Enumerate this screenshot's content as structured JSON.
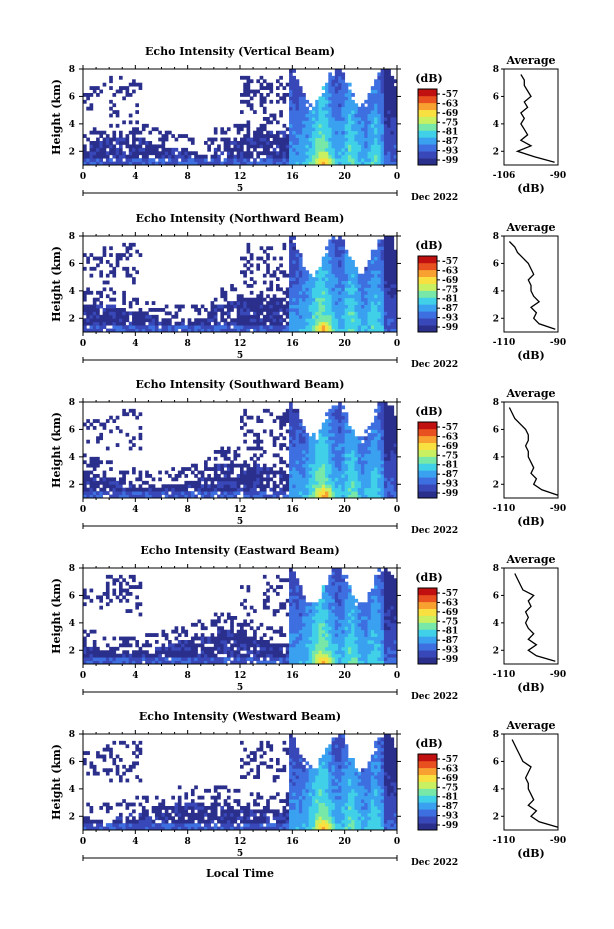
{
  "figure": {
    "xlabel_bottom": "Local Time",
    "colorbar_unit": "(dB)",
    "colorbar_ticks": [
      "-57",
      "-63",
      "-69",
      "-75",
      "-81",
      "-87",
      "-93",
      "-99"
    ],
    "date_label": "Dec 2022",
    "day_label": "5",
    "x_ticks": [
      "0",
      "4",
      "8",
      "12",
      "16",
      "20",
      "0"
    ],
    "y_ticks": [
      "8",
      "6",
      "4",
      "2"
    ],
    "colors": [
      "#2b2f8c",
      "#3848b8",
      "#3e6fe0",
      "#3aa0f0",
      "#40d0e8",
      "#78e8a8",
      "#c8f060",
      "#f8e040",
      "#f8a030",
      "#e85020",
      "#c01010"
    ]
  },
  "chart_data": [
    {
      "type": "heatmap",
      "title": "Echo Intensity (Vertical Beam)",
      "ylabel": "Height (km)",
      "xlabel": "",
      "x_range": [
        0,
        24
      ],
      "y_range": [
        1,
        8
      ],
      "clim": [
        -99,
        -57
      ],
      "colorbar_label": "(dB)",
      "profile": {
        "title": "Average",
        "xlabel": "(dB)",
        "xlim": [
          -106,
          -90
        ],
        "xticks": [
          "-106",
          "-90"
        ],
        "heights": [
          1.2,
          1.6,
          2,
          2.4,
          2.8,
          3.2,
          3.6,
          4,
          4.4,
          4.8,
          5.2,
          5.6,
          6,
          6.4,
          6.8,
          7.2,
          7.6
        ],
        "values": [
          -91,
          -97,
          -102,
          -98,
          -101,
          -99,
          -100,
          -101,
          -100,
          -101,
          -99,
          -100,
          -98,
          -99,
          -100,
          -100,
          -101
        ]
      }
    },
    {
      "type": "heatmap",
      "title": "Echo Intensity (Northward Beam)",
      "ylabel": "Height (km)",
      "xlabel": "",
      "x_range": [
        0,
        24
      ],
      "y_range": [
        1,
        8
      ],
      "clim": [
        -99,
        -57
      ],
      "colorbar_label": "(dB)",
      "profile": {
        "title": "Average",
        "xlabel": "(dB)",
        "xlim": [
          -110,
          -90
        ],
        "xticks": [
          "-110",
          "-90"
        ],
        "heights": [
          1.2,
          1.6,
          2,
          2.4,
          2.8,
          3.2,
          3.6,
          4,
          4.4,
          4.8,
          5.2,
          5.6,
          6,
          6.4,
          6.8,
          7.2,
          7.6
        ],
        "values": [
          -91,
          -97,
          -99,
          -98,
          -100,
          -97,
          -99,
          -100,
          -100,
          -101,
          -99,
          -100,
          -101,
          -103,
          -105,
          -106,
          -108
        ]
      }
    },
    {
      "type": "heatmap",
      "title": "Echo Intensity (Southward Beam)",
      "ylabel": "Height (km)",
      "xlabel": "",
      "x_range": [
        0,
        24
      ],
      "y_range": [
        1,
        8
      ],
      "clim": [
        -99,
        -57
      ],
      "colorbar_label": "(dB)",
      "profile": {
        "title": "Average",
        "xlabel": "(dB)",
        "xlim": [
          -110,
          -90
        ],
        "xticks": [
          "-110",
          "-90"
        ],
        "heights": [
          1.2,
          1.6,
          2,
          2.4,
          2.8,
          3.2,
          3.6,
          4,
          4.4,
          4.8,
          5.2,
          5.6,
          6,
          6.4,
          6.8,
          7.2,
          7.6
        ],
        "values": [
          -90,
          -96,
          -99,
          -98,
          -100,
          -99,
          -100,
          -101,
          -101,
          -102,
          -101,
          -101,
          -102,
          -104,
          -106,
          -107,
          -108
        ]
      }
    },
    {
      "type": "heatmap",
      "title": "Echo Intensity (Eastward Beam)",
      "ylabel": "Height (km)",
      "xlabel": "",
      "x_range": [
        0,
        24
      ],
      "y_range": [
        1,
        8
      ],
      "clim": [
        -99,
        -57
      ],
      "colorbar_label": "(dB)",
      "profile": {
        "title": "Average",
        "xlabel": "(dB)",
        "xlim": [
          -110,
          -90
        ],
        "xticks": [
          "-110",
          "-90"
        ],
        "heights": [
          1.2,
          1.6,
          2,
          2.4,
          2.8,
          3.2,
          3.6,
          4,
          4.4,
          4.8,
          5.2,
          5.6,
          6,
          6.4,
          6.8,
          7.2,
          7.6
        ],
        "values": [
          -91,
          -98,
          -101,
          -98,
          -101,
          -99,
          -101,
          -102,
          -101,
          -102,
          -100,
          -101,
          -99,
          -103,
          -104,
          -105,
          -106
        ]
      }
    },
    {
      "type": "heatmap",
      "title": "Echo Intensity (Westward Beam)",
      "ylabel": "Height (km)",
      "xlabel": "Local Time",
      "x_range": [
        0,
        24
      ],
      "y_range": [
        1,
        8
      ],
      "clim": [
        -99,
        -57
      ],
      "colorbar_label": "(dB)",
      "profile": {
        "title": "Average",
        "xlabel": "(dB)",
        "xlim": [
          -110,
          -90
        ],
        "xticks": [
          "-110",
          "-90"
        ],
        "heights": [
          1.2,
          1.6,
          2,
          2.4,
          2.8,
          3.2,
          3.6,
          4,
          4.4,
          4.8,
          5.2,
          5.6,
          6,
          6.4,
          6.8,
          7.2,
          7.6
        ],
        "values": [
          -90,
          -97,
          -100,
          -98,
          -101,
          -99,
          -100,
          -101,
          -101,
          -102,
          -101,
          -100,
          -103,
          -104,
          -105,
          -106,
          -107
        ]
      }
    }
  ]
}
